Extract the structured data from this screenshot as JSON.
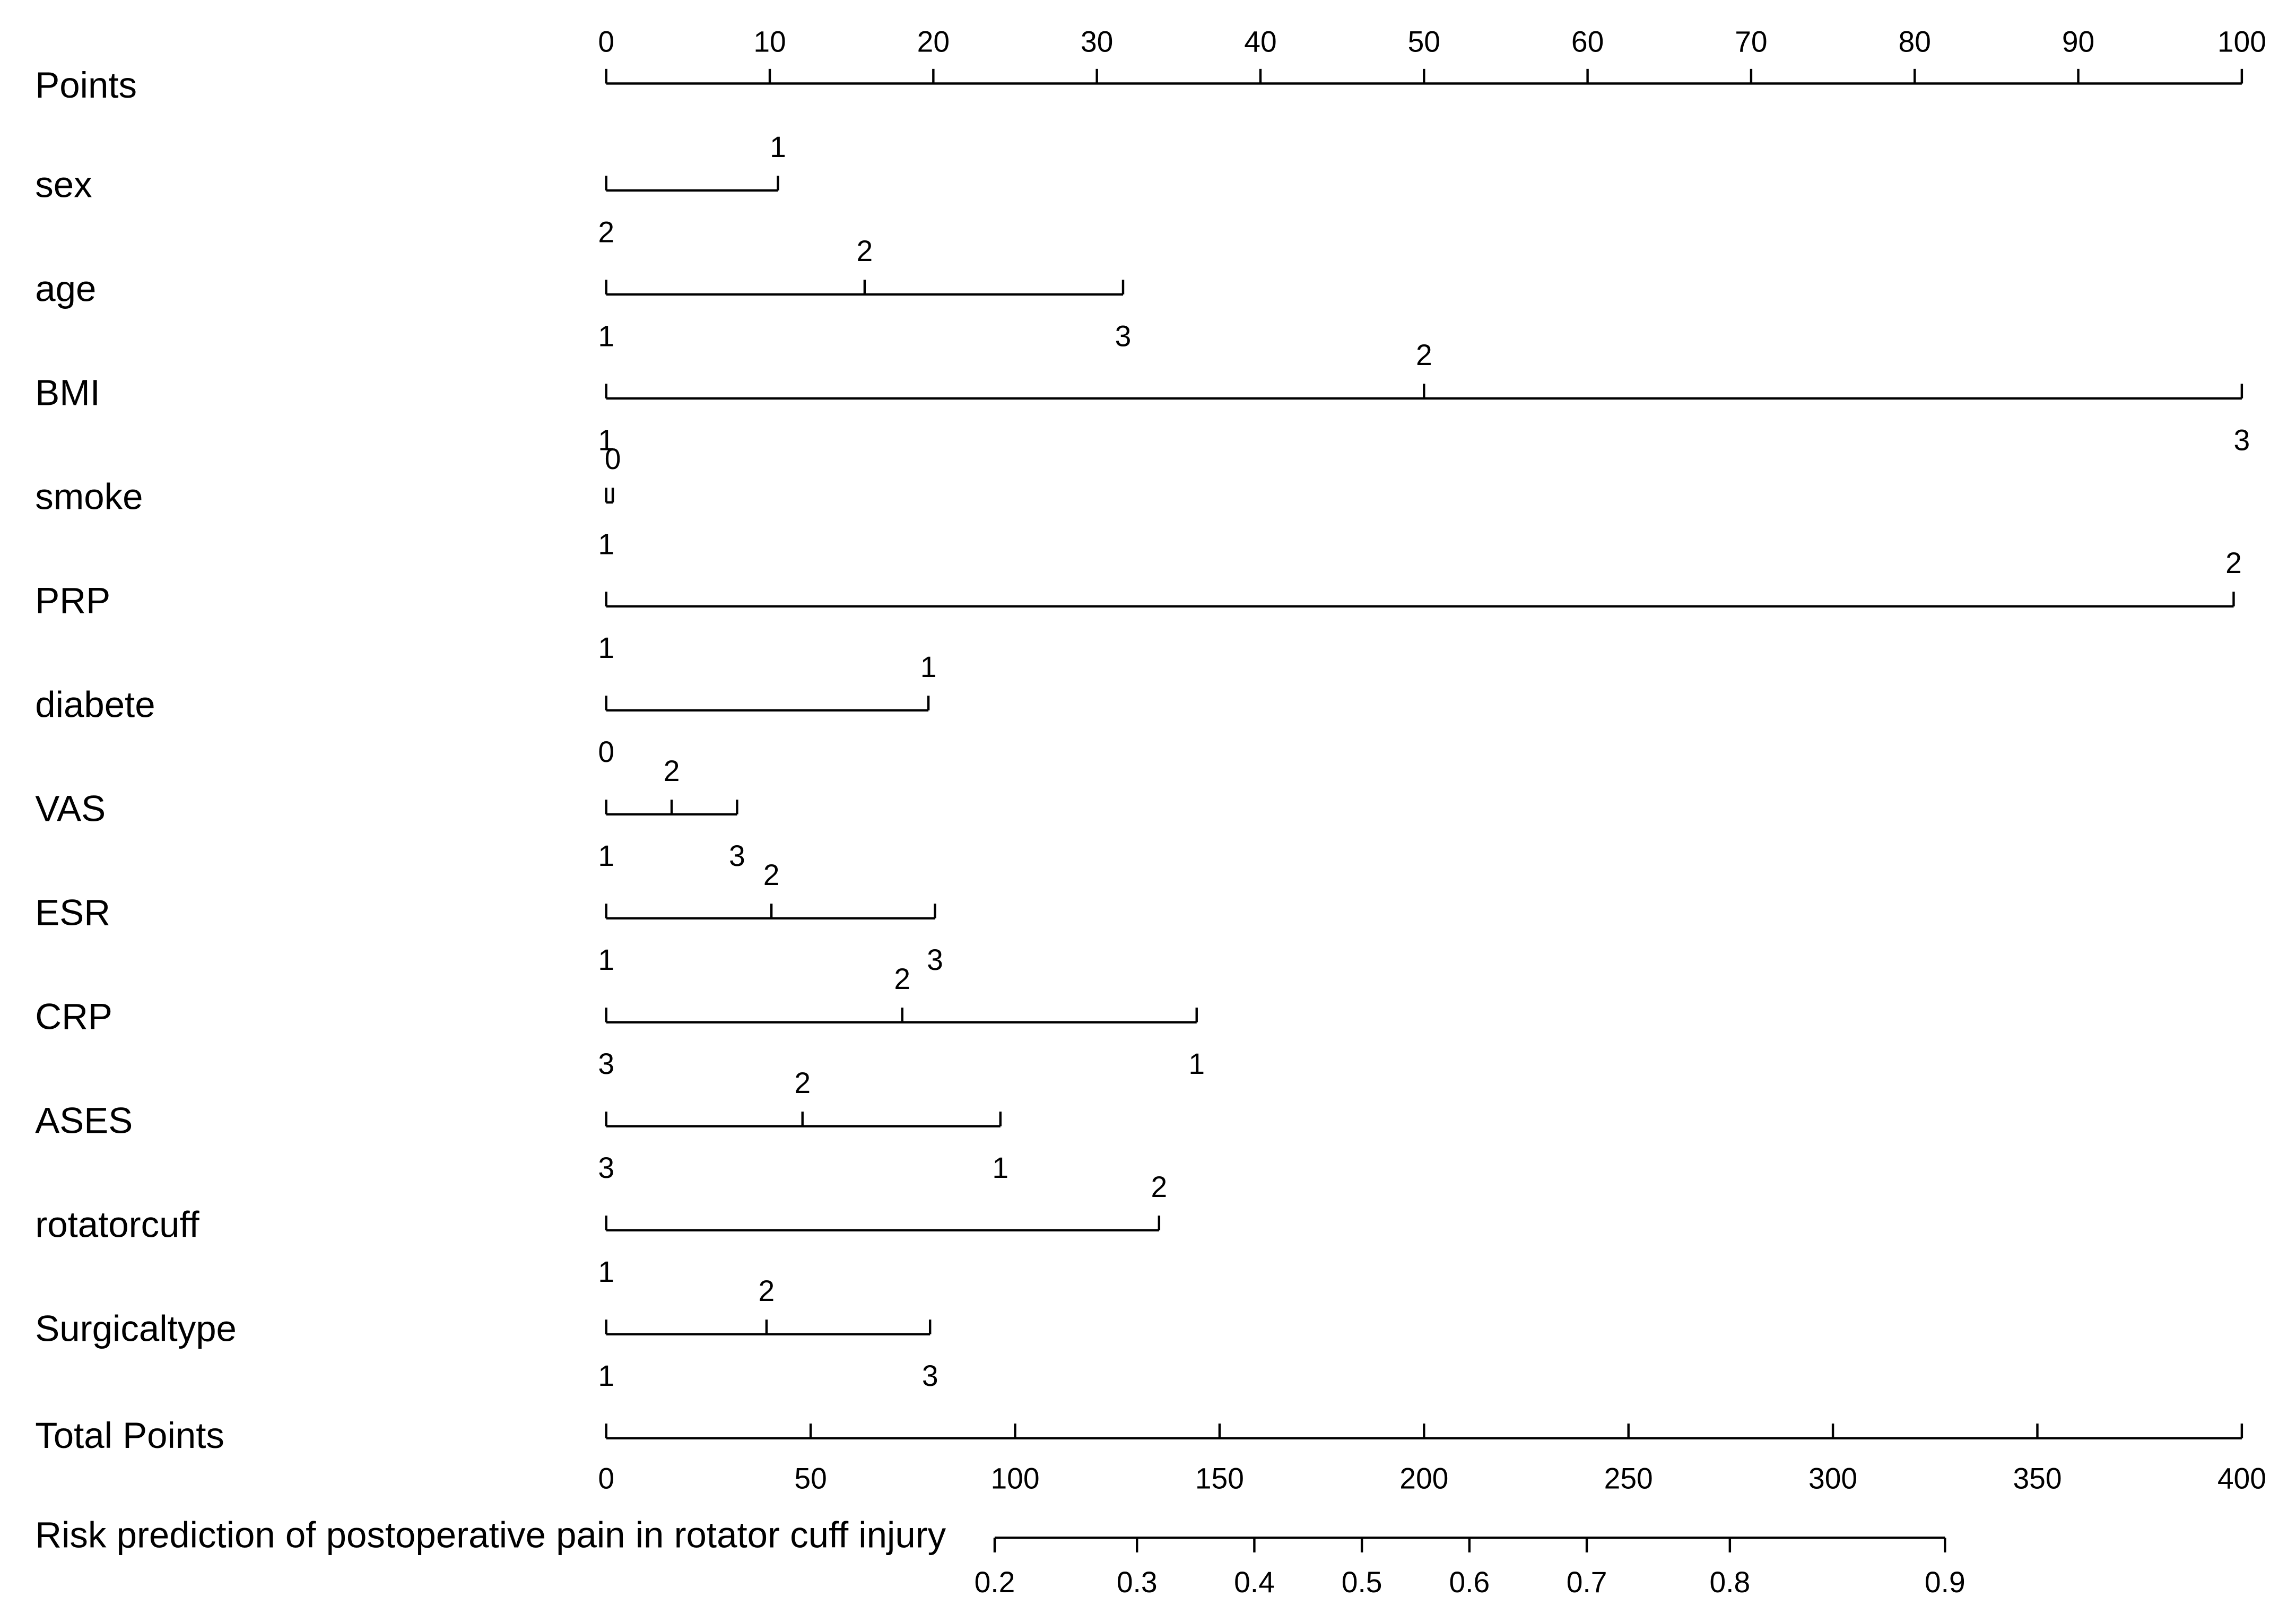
{
  "chart_data": {
    "type": "nomogram",
    "points_axis": {
      "label": "Points",
      "lim": [
        0,
        100
      ],
      "ticks": [
        0,
        10,
        20,
        30,
        40,
        50,
        60,
        70,
        80,
        90,
        100
      ]
    },
    "variables": [
      {
        "name": "sex",
        "levels": [
          "2",
          "1"
        ],
        "points": [
          0,
          10.5
        ]
      },
      {
        "name": "age",
        "levels": [
          "1",
          "2",
          "3"
        ],
        "points": [
          0,
          15.8,
          31.6
        ]
      },
      {
        "name": "BMI",
        "levels": [
          "1",
          "2",
          "3"
        ],
        "points": [
          0,
          50,
          100
        ]
      },
      {
        "name": "smoke",
        "levels": [
          "1",
          "0"
        ],
        "points": [
          0,
          0.4
        ]
      },
      {
        "name": "PRP",
        "levels": [
          "1",
          "2"
        ],
        "points": [
          0,
          99.5
        ]
      },
      {
        "name": "diabete",
        "levels": [
          "0",
          "1"
        ],
        "points": [
          0,
          19.7
        ]
      },
      {
        "name": "VAS",
        "levels": [
          "1",
          "2",
          "3"
        ],
        "points": [
          0,
          4,
          8
        ]
      },
      {
        "name": "ESR",
        "levels": [
          "1",
          "2",
          "3"
        ],
        "points": [
          0,
          10.1,
          20.1
        ]
      },
      {
        "name": "CRP",
        "levels": [
          "3",
          "2",
          "1"
        ],
        "points": [
          0,
          18.1,
          36.1
        ]
      },
      {
        "name": "ASES",
        "levels": [
          "3",
          "2",
          "1"
        ],
        "points": [
          0,
          12,
          24.1
        ]
      },
      {
        "name": "rotatorcuff",
        "levels": [
          "1",
          "2"
        ],
        "points": [
          0,
          33.8
        ]
      },
      {
        "name": "Surgicaltype",
        "levels": [
          "1",
          "2",
          "3"
        ],
        "points": [
          0,
          9.8,
          19.8
        ]
      }
    ],
    "total_points_axis": {
      "label": "Total Points",
      "lim": [
        0,
        400
      ],
      "ticks": [
        0,
        50,
        100,
        150,
        200,
        250,
        300,
        350,
        400
      ]
    },
    "risk_axis": {
      "label": "Risk prediction of postoperative pain in rotator cuff injury",
      "ticks": [
        0.2,
        0.3,
        0.4,
        0.5,
        0.6,
        0.7,
        0.8,
        0.9
      ],
      "total_points": [
        95,
        129.8,
        158.5,
        184.8,
        211.1,
        239.8,
        274.8,
        327.4
      ]
    }
  }
}
